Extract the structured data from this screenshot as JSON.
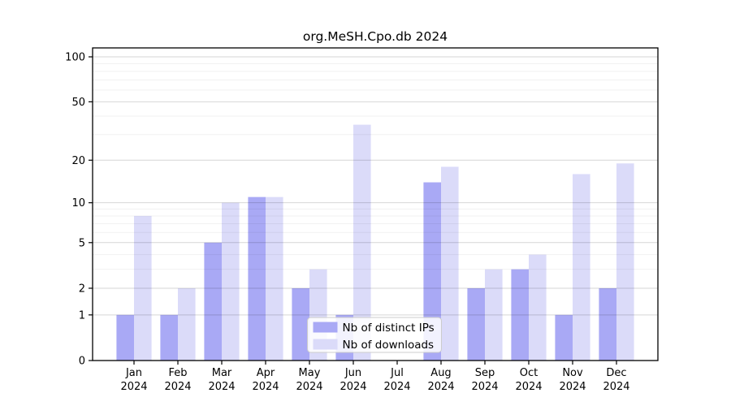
{
  "window": {
    "background": "#ffffff"
  },
  "chart_data": {
    "type": "bar",
    "title": "org.MeSH.Cpo.db 2024",
    "categories": [
      "Jan 2024",
      "Feb 2024",
      "Mar 2024",
      "Apr 2024",
      "May 2024",
      "Jun 2024",
      "Jul 2024",
      "Aug 2024",
      "Sep 2024",
      "Oct 2024",
      "Nov 2024",
      "Dec 2024"
    ],
    "series": [
      {
        "name": "Nb of distinct IPs",
        "color": "#a9a9f5",
        "values": [
          1,
          1,
          5,
          11,
          2,
          1,
          0,
          14,
          2,
          3,
          1,
          2
        ]
      },
      {
        "name": "Nb of downloads",
        "color": "#dbdbf9",
        "values": [
          8,
          2,
          10,
          11,
          3,
          35,
          0,
          18,
          3,
          4,
          16,
          19
        ]
      }
    ],
    "yscale": "log1p",
    "ylim": [
      0,
      115
    ],
    "yticks": [
      0,
      1,
      2,
      5,
      10,
      20,
      50,
      100
    ],
    "minor_gridlines": [
      3,
      4,
      6,
      7,
      8,
      9,
      30,
      40,
      60,
      70,
      80,
      90
    ],
    "grid": true,
    "xlabel": "",
    "ylabel": "",
    "legend": {
      "position": "lower center",
      "labels": [
        "Nb of distinct IPs",
        "Nb of downloads"
      ]
    },
    "style": {
      "major_grid_color": "rgba(0,0,0,0.16)",
      "minor_grid_color": "rgba(0,0,0,0.055)",
      "spine_color": "#000000",
      "tick_label_color": "#000000",
      "legend_border_color": "#cccccc",
      "legend_background": "rgba(255,255,255,0.85)"
    }
  }
}
